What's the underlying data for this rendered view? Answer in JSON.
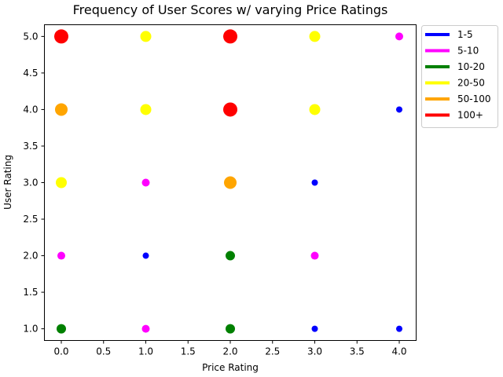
{
  "chart_data": {
    "type": "scatter",
    "title": "Frequency of User Scores w/ varying Price Ratings",
    "xlabel": "Price Rating",
    "ylabel": "User Rating",
    "xlim": [
      -0.2,
      4.2
    ],
    "ylim": [
      0.84,
      5.16
    ],
    "xticks": [
      "0.0",
      "0.5",
      "1.0",
      "1.5",
      "2.0",
      "2.5",
      "3.0",
      "3.5",
      "4.0"
    ],
    "yticks": [
      "1.0",
      "1.5",
      "2.0",
      "2.5",
      "3.0",
      "3.5",
      "4.0",
      "4.5",
      "5.0"
    ],
    "grid": false,
    "legend_position": "outside-top-right",
    "legend": [
      {
        "label": "1-5",
        "color": "#0000ff"
      },
      {
        "label": "5-10",
        "color": "#ff00ff"
      },
      {
        "label": "10-20",
        "color": "#008000"
      },
      {
        "label": "20-50",
        "color": "#ffff00"
      },
      {
        "label": "50-100",
        "color": "#ffa500"
      },
      {
        "label": "100+",
        "color": "#ff0000"
      }
    ],
    "points": [
      {
        "x": 0,
        "y": 1,
        "category": "10-20"
      },
      {
        "x": 0,
        "y": 2,
        "category": "5-10"
      },
      {
        "x": 0,
        "y": 3,
        "category": "20-50"
      },
      {
        "x": 0,
        "y": 4,
        "category": "50-100"
      },
      {
        "x": 0,
        "y": 5,
        "category": "100+"
      },
      {
        "x": 1,
        "y": 1,
        "category": "5-10"
      },
      {
        "x": 1,
        "y": 2,
        "category": "1-5"
      },
      {
        "x": 1,
        "y": 3,
        "category": "5-10"
      },
      {
        "x": 1,
        "y": 4,
        "category": "20-50"
      },
      {
        "x": 1,
        "y": 5,
        "category": "20-50"
      },
      {
        "x": 2,
        "y": 1,
        "category": "10-20"
      },
      {
        "x": 2,
        "y": 2,
        "category": "10-20"
      },
      {
        "x": 2,
        "y": 3,
        "category": "50-100"
      },
      {
        "x": 2,
        "y": 4,
        "category": "100+"
      },
      {
        "x": 2,
        "y": 5,
        "category": "100+"
      },
      {
        "x": 3,
        "y": 1,
        "category": "1-5"
      },
      {
        "x": 3,
        "y": 2,
        "category": "5-10"
      },
      {
        "x": 3,
        "y": 3,
        "category": "1-5"
      },
      {
        "x": 3,
        "y": 4,
        "category": "20-50"
      },
      {
        "x": 3,
        "y": 5,
        "category": "20-50"
      },
      {
        "x": 4,
        "y": 1,
        "category": "1-5"
      },
      {
        "x": 4,
        "y": 4,
        "category": "1-5"
      },
      {
        "x": 4,
        "y": 5,
        "category": "5-10"
      }
    ]
  }
}
